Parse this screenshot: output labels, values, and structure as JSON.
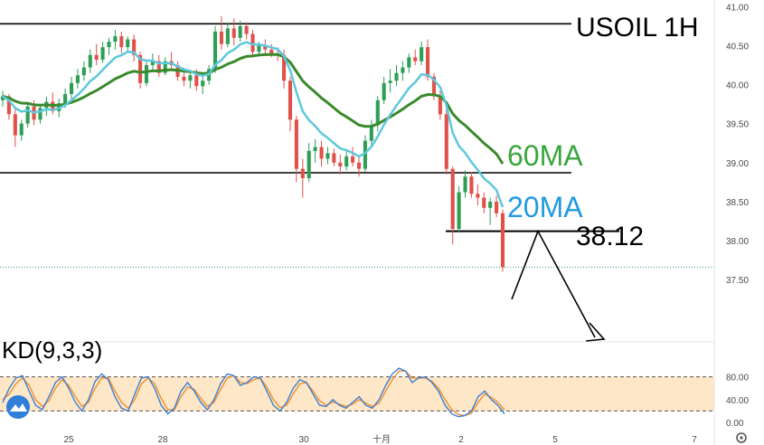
{
  "chart_data": [
    {
      "type": "candlestick",
      "title": "USOIL 1H",
      "ylim": [
        37.2,
        41.05
      ],
      "y_ticks": [
        "41.00",
        "40.50",
        "40.00",
        "39.50",
        "39.00",
        "38.50",
        "38.00",
        "37.50"
      ],
      "x_ticks": [
        "25",
        "28",
        "30",
        "十月",
        "2",
        "5",
        "7"
      ],
      "colors": {
        "up": "#2e9e56",
        "down": "#e0514a",
        "ma20": "#5ec8dc",
        "ma60": "#3a8a2c",
        "levels": "#000000"
      },
      "annotations": {
        "ma60_label": "60MA",
        "ma20_label": "20MA",
        "price_label": "38.12",
        "support_level": 38.12,
        "upper_range": 40.78,
        "lower_range": 38.87,
        "last_price": 37.66
      },
      "candles": [
        [
          39.8,
          39.92,
          39.72,
          39.85
        ],
        [
          39.85,
          39.88,
          39.55,
          39.62
        ],
        [
          39.62,
          39.7,
          39.2,
          39.35
        ],
        [
          39.35,
          39.55,
          39.28,
          39.5
        ],
        [
          39.5,
          39.78,
          39.45,
          39.72
        ],
        [
          39.72,
          39.8,
          39.48,
          39.55
        ],
        [
          39.55,
          39.75,
          39.5,
          39.7
        ],
        [
          39.7,
          39.85,
          39.6,
          39.78
        ],
        [
          39.78,
          39.9,
          39.62,
          39.66
        ],
        [
          39.66,
          39.82,
          39.58,
          39.76
        ],
        [
          39.76,
          39.95,
          39.7,
          39.88
        ],
        [
          39.88,
          40.1,
          39.82,
          40.02
        ],
        [
          40.02,
          40.2,
          39.95,
          40.12
        ],
        [
          40.12,
          40.3,
          40.05,
          40.22
        ],
        [
          40.22,
          40.45,
          40.15,
          40.38
        ],
        [
          40.38,
          40.52,
          40.25,
          40.32
        ],
        [
          40.32,
          40.55,
          40.28,
          40.48
        ],
        [
          40.48,
          40.6,
          40.38,
          40.55
        ],
        [
          40.55,
          40.7,
          40.45,
          40.62
        ],
        [
          40.62,
          40.68,
          40.4,
          40.48
        ],
        [
          40.48,
          40.62,
          40.42,
          40.58
        ],
        [
          40.58,
          40.64,
          40.3,
          40.38
        ],
        [
          40.38,
          40.42,
          39.95,
          40.02
        ],
        [
          40.02,
          40.3,
          39.98,
          40.25
        ],
        [
          40.25,
          40.4,
          40.18,
          40.3
        ],
        [
          40.3,
          40.38,
          40.1,
          40.15
        ],
        [
          40.15,
          40.35,
          40.12,
          40.3
        ],
        [
          40.3,
          40.42,
          40.2,
          40.25
        ],
        [
          40.25,
          40.3,
          40.05,
          40.1
        ],
        [
          40.1,
          40.22,
          39.98,
          40.05
        ],
        [
          40.05,
          40.18,
          39.95,
          40.12
        ],
        [
          40.12,
          40.2,
          39.92,
          39.98
        ],
        [
          39.98,
          40.1,
          39.88,
          40.05
        ],
        [
          40.05,
          40.25,
          40.0,
          40.2
        ],
        [
          40.2,
          40.75,
          40.15,
          40.68
        ],
        [
          40.68,
          40.88,
          40.45,
          40.52
        ],
        [
          40.52,
          40.8,
          40.48,
          40.72
        ],
        [
          40.72,
          40.85,
          40.5,
          40.6
        ],
        [
          40.6,
          40.82,
          40.55,
          40.75
        ],
        [
          40.75,
          40.8,
          40.58,
          40.65
        ],
        [
          40.65,
          40.7,
          40.35,
          40.42
        ],
        [
          40.42,
          40.55,
          40.38,
          40.5
        ],
        [
          40.5,
          40.58,
          40.4,
          40.45
        ],
        [
          40.45,
          40.52,
          40.35,
          40.4
        ],
        [
          40.4,
          40.48,
          40.3,
          40.38
        ],
        [
          40.38,
          40.45,
          39.95,
          40.05
        ],
        [
          40.05,
          40.1,
          39.4,
          39.55
        ],
        [
          39.55,
          39.6,
          38.75,
          38.92
        ],
        [
          38.92,
          39.05,
          38.55,
          38.8
        ],
        [
          38.8,
          39.25,
          38.75,
          39.15
        ],
        [
          39.15,
          39.3,
          39.0,
          39.2
        ],
        [
          39.2,
          39.28,
          38.95,
          39.05
        ],
        [
          39.05,
          39.2,
          38.98,
          39.12
        ],
        [
          39.12,
          39.18,
          38.95,
          39.0
        ],
        [
          39.0,
          39.1,
          38.85,
          38.95
        ],
        [
          38.95,
          39.15,
          38.9,
          39.08
        ],
        [
          39.08,
          39.2,
          38.95,
          39.0
        ],
        [
          39.0,
          39.08,
          38.82,
          38.92
        ],
        [
          38.92,
          39.35,
          38.88,
          39.28
        ],
        [
          39.28,
          39.55,
          39.2,
          39.48
        ],
        [
          39.48,
          39.85,
          39.4,
          39.8
        ],
        [
          39.8,
          40.1,
          39.75,
          40.02
        ],
        [
          40.02,
          40.2,
          39.9,
          40.05
        ],
        [
          40.05,
          40.25,
          39.98,
          40.15
        ],
        [
          40.15,
          40.3,
          40.05,
          40.22
        ],
        [
          40.22,
          40.4,
          40.15,
          40.35
        ],
        [
          40.35,
          40.45,
          40.25,
          40.3
        ],
        [
          40.3,
          40.55,
          40.25,
          40.48
        ],
        [
          40.48,
          40.58,
          40.05,
          40.1
        ],
        [
          40.1,
          40.15,
          39.8,
          39.85
        ],
        [
          39.85,
          39.92,
          39.55,
          39.62
        ],
        [
          39.62,
          39.7,
          38.85,
          38.92
        ],
        [
          38.92,
          38.95,
          37.95,
          38.15
        ],
        [
          38.15,
          38.7,
          38.1,
          38.62
        ],
        [
          38.62,
          38.9,
          38.55,
          38.82
        ],
        [
          38.82,
          38.88,
          38.55,
          38.6
        ],
        [
          38.6,
          38.72,
          38.45,
          38.55
        ],
        [
          38.55,
          38.62,
          38.35,
          38.42
        ],
        [
          38.42,
          38.55,
          38.2,
          38.5
        ],
        [
          38.5,
          38.58,
          38.3,
          38.35
        ],
        [
          38.35,
          38.4,
          37.6,
          37.66
        ]
      ]
    },
    {
      "type": "line",
      "title": "KD(9,3,3)",
      "ylim": [
        0,
        100
      ],
      "y_ticks": [
        "80.00",
        "40.00",
        "0.00"
      ],
      "overbought": 80,
      "oversold": 20,
      "colors": {
        "k": "#3d7fd6",
        "d": "#ef8f2e",
        "band": "#fde7c7"
      },
      "k_values": [
        35,
        60,
        78,
        82,
        55,
        30,
        22,
        45,
        70,
        80,
        60,
        35,
        20,
        40,
        72,
        85,
        75,
        45,
        25,
        20,
        50,
        78,
        80,
        60,
        30,
        15,
        25,
        55,
        70,
        55,
        35,
        22,
        40,
        68,
        85,
        82,
        65,
        70,
        80,
        78,
        55,
        30,
        20,
        35,
        60,
        75,
        70,
        50,
        30,
        28,
        40,
        30,
        25,
        35,
        45,
        30,
        25,
        40,
        65,
        85,
        95,
        90,
        70,
        78,
        80,
        70,
        55,
        30,
        15,
        10,
        12,
        20,
        45,
        55,
        40,
        30,
        15
      ],
      "d_values": [
        40,
        50,
        68,
        78,
        65,
        40,
        28,
        38,
        60,
        75,
        65,
        45,
        28,
        35,
        60,
        78,
        78,
        55,
        35,
        25,
        40,
        68,
        78,
        68,
        42,
        22,
        22,
        45,
        62,
        58,
        42,
        28,
        35,
        58,
        78,
        82,
        70,
        68,
        75,
        78,
        62,
        40,
        26,
        30,
        50,
        68,
        70,
        55,
        38,
        30,
        36,
        32,
        28,
        32,
        40,
        34,
        28,
        34,
        55,
        75,
        90,
        90,
        78,
        78,
        78,
        72,
        60,
        40,
        22,
        14,
        12,
        16,
        35,
        50,
        44,
        35,
        22
      ]
    }
  ]
}
